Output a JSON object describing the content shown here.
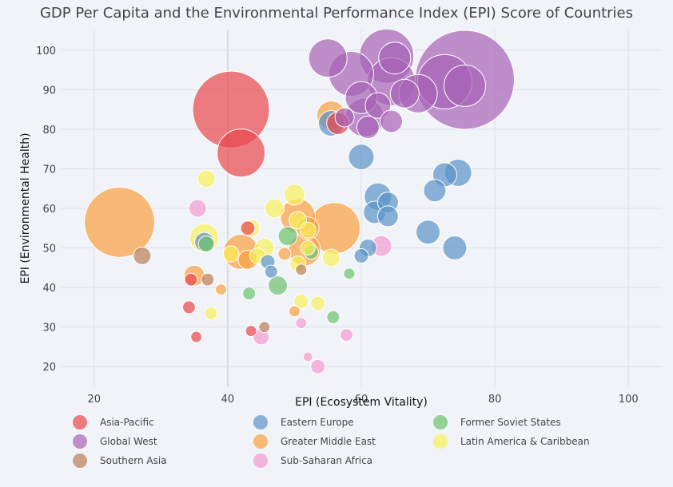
{
  "chart_data": {
    "type": "scatter",
    "title": "GDP Per Capita and the Environmental Performance Index (EPI) Score of Countries",
    "xlabel": "EPI (Ecosystem Vitality)",
    "ylabel": "EPI (Environmental Health)",
    "xlim": [
      15,
      105
    ],
    "ylim": [
      15,
      105
    ],
    "xticks": [
      20,
      40,
      60,
      80,
      100
    ],
    "yticks": [
      20,
      30,
      40,
      50,
      60,
      70,
      80,
      90,
      100
    ],
    "grid": true,
    "legend_position": "bottom",
    "marker_size_meaning": "GDP per capita",
    "series": [
      {
        "name": "Asia-Pacific",
        "color": "#e8474b",
        "points": [
          {
            "x": 40.5,
            "y": 85,
            "r": 48
          },
          {
            "x": 42,
            "y": 74,
            "r": 30
          },
          {
            "x": 56.5,
            "y": 81.5,
            "r": 14
          },
          {
            "x": 34.5,
            "y": 42,
            "r": 8
          },
          {
            "x": 34.2,
            "y": 35,
            "r": 8
          },
          {
            "x": 35.3,
            "y": 27.5,
            "r": 7
          },
          {
            "x": 43.5,
            "y": 29,
            "r": 7
          },
          {
            "x": 43,
            "y": 55,
            "r": 9
          }
        ]
      },
      {
        "name": "Global West",
        "color": "#a663b7",
        "points": [
          {
            "x": 75.5,
            "y": 92.5,
            "r": 62
          },
          {
            "x": 72.5,
            "y": 92,
            "r": 34
          },
          {
            "x": 75.5,
            "y": 91,
            "r": 26
          },
          {
            "x": 63.8,
            "y": 98.5,
            "r": 34
          },
          {
            "x": 64.5,
            "y": 92,
            "r": 30
          },
          {
            "x": 58.5,
            "y": 94,
            "r": 28
          },
          {
            "x": 55,
            "y": 98,
            "r": 24
          },
          {
            "x": 65,
            "y": 98,
            "r": 20
          },
          {
            "x": 66.5,
            "y": 89,
            "r": 18
          },
          {
            "x": 60.5,
            "y": 83,
            "r": 24
          },
          {
            "x": 60,
            "y": 88,
            "r": 20
          },
          {
            "x": 62.5,
            "y": 86,
            "r": 16
          },
          {
            "x": 64.5,
            "y": 82,
            "r": 14
          },
          {
            "x": 68.5,
            "y": 89,
            "r": 24
          },
          {
            "x": 57.5,
            "y": 83,
            "r": 12
          },
          {
            "x": 61,
            "y": 80.5,
            "r": 14
          }
        ]
      },
      {
        "name": "Southern Asia",
        "color": "#b97d59",
        "points": [
          {
            "x": 27.2,
            "y": 48,
            "r": 11
          },
          {
            "x": 37,
            "y": 42,
            "r": 8
          },
          {
            "x": 45.5,
            "y": 30,
            "r": 7
          },
          {
            "x": 51,
            "y": 44.5,
            "r": 7
          }
        ]
      },
      {
        "name": "Eastern Europe",
        "color": "#5b93c8",
        "points": [
          {
            "x": 74.5,
            "y": 69,
            "r": 17
          },
          {
            "x": 72.5,
            "y": 68.5,
            "r": 15
          },
          {
            "x": 71,
            "y": 64.5,
            "r": 14
          },
          {
            "x": 62.5,
            "y": 63,
            "r": 17
          },
          {
            "x": 64,
            "y": 61.5,
            "r": 13
          },
          {
            "x": 62,
            "y": 59,
            "r": 14
          },
          {
            "x": 64,
            "y": 58,
            "r": 13
          },
          {
            "x": 70,
            "y": 54,
            "r": 15
          },
          {
            "x": 74,
            "y": 50,
            "r": 15
          },
          {
            "x": 61,
            "y": 50,
            "r": 11
          },
          {
            "x": 60,
            "y": 48,
            "r": 9
          },
          {
            "x": 60,
            "y": 73,
            "r": 16
          },
          {
            "x": 55.5,
            "y": 81.5,
            "r": 16
          },
          {
            "x": 46,
            "y": 46.5,
            "r": 9
          },
          {
            "x": 46.5,
            "y": 44,
            "r": 8
          },
          {
            "x": 36.5,
            "y": 51.5,
            "r": 12
          }
        ]
      },
      {
        "name": "Greater Middle East",
        "color": "#fc9f3f",
        "points": [
          {
            "x": 23.8,
            "y": 56.5,
            "r": 44
          },
          {
            "x": 56,
            "y": 55,
            "r": 32
          },
          {
            "x": 50.5,
            "y": 58,
            "r": 22
          },
          {
            "x": 42,
            "y": 49,
            "r": 22
          },
          {
            "x": 51.5,
            "y": 49.5,
            "r": 20
          },
          {
            "x": 55.5,
            "y": 83.5,
            "r": 18
          },
          {
            "x": 35,
            "y": 43,
            "r": 13
          },
          {
            "x": 43,
            "y": 47,
            "r": 12
          },
          {
            "x": 39,
            "y": 39.5,
            "r": 7
          },
          {
            "x": 48.5,
            "y": 48.5,
            "r": 8
          },
          {
            "x": 50,
            "y": 34,
            "r": 7
          },
          {
            "x": 52,
            "y": 55,
            "r": 14
          }
        ]
      },
      {
        "name": "Sub-Saharan Africa",
        "color": "#f59ad0",
        "points": [
          {
            "x": 35.5,
            "y": 60,
            "r": 11
          },
          {
            "x": 63,
            "y": 50.5,
            "r": 13
          },
          {
            "x": 45,
            "y": 27.5,
            "r": 10
          },
          {
            "x": 53.5,
            "y": 20,
            "r": 9
          },
          {
            "x": 52,
            "y": 22.5,
            "r": 6
          },
          {
            "x": 51,
            "y": 31,
            "r": 7
          },
          {
            "x": 57.8,
            "y": 28,
            "r": 8
          }
        ]
      },
      {
        "name": "Former Soviet States",
        "color": "#6cc26c",
        "points": [
          {
            "x": 49,
            "y": 53,
            "r": 12
          },
          {
            "x": 47.5,
            "y": 40.5,
            "r": 12
          },
          {
            "x": 43.2,
            "y": 38.5,
            "r": 8
          },
          {
            "x": 55.8,
            "y": 32.5,
            "r": 8
          },
          {
            "x": 58.2,
            "y": 43.5,
            "r": 7
          },
          {
            "x": 36.8,
            "y": 51,
            "r": 10
          },
          {
            "x": 52.5,
            "y": 49,
            "r": 9
          }
        ]
      },
      {
        "name": "Latin America & Caribbean",
        "color": "#f8f05a",
        "points": [
          {
            "x": 36.5,
            "y": 52.5,
            "r": 18
          },
          {
            "x": 36.8,
            "y": 67.5,
            "r": 11
          },
          {
            "x": 47,
            "y": 60,
            "r": 12
          },
          {
            "x": 50,
            "y": 63.5,
            "r": 13
          },
          {
            "x": 43.5,
            "y": 55,
            "r": 11
          },
          {
            "x": 45.5,
            "y": 50,
            "r": 12
          },
          {
            "x": 44.5,
            "y": 48,
            "r": 10
          },
          {
            "x": 40.5,
            "y": 48.5,
            "r": 10
          },
          {
            "x": 52,
            "y": 54.5,
            "r": 10
          },
          {
            "x": 50.5,
            "y": 46,
            "r": 10
          },
          {
            "x": 52,
            "y": 50,
            "r": 9
          },
          {
            "x": 55.5,
            "y": 47.5,
            "r": 11
          },
          {
            "x": 51,
            "y": 36.5,
            "r": 9
          },
          {
            "x": 53.5,
            "y": 36,
            "r": 9
          },
          {
            "x": 37.5,
            "y": 33.5,
            "r": 8
          },
          {
            "x": 50.5,
            "y": 57,
            "r": 11
          }
        ]
      }
    ]
  }
}
